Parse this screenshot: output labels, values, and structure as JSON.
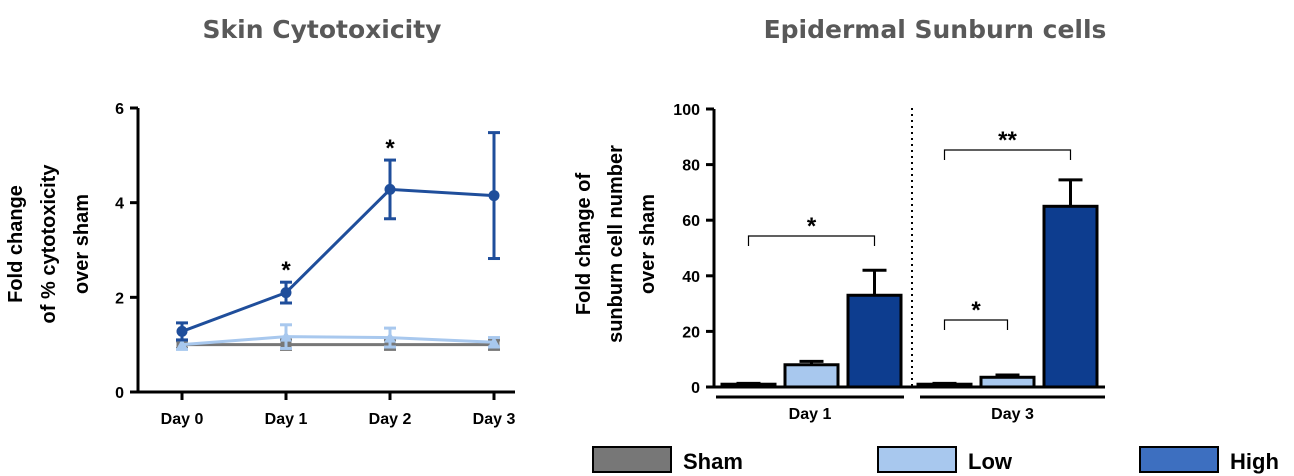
{
  "chart_data": [
    {
      "type": "line",
      "title": "Skin Cytotoxicity",
      "ylabel": "Fold change of % cytotoxicity over sham",
      "ylabel_lines": [
        "Fold change",
        "of % cytotoxicity",
        "over sham"
      ],
      "xlabel": "",
      "categories": [
        "Day 0",
        "Day 1",
        "Day 2",
        "Day 3"
      ],
      "ylim": [
        0,
        6
      ],
      "yticks": [
        0,
        2,
        4,
        6
      ],
      "grid": false,
      "series": [
        {
          "name": "Sham",
          "color": "#777777",
          "values": [
            1.0,
            1.0,
            1.0,
            1.0
          ],
          "errors": [
            0.08,
            0.1,
            0.1,
            0.1
          ],
          "marker": "square"
        },
        {
          "name": "Low",
          "color": "#a8c8ee",
          "values": [
            1.0,
            1.17,
            1.15,
            1.05
          ],
          "errors": [
            0.1,
            0.25,
            0.2,
            0.1
          ],
          "marker": "triangle"
        },
        {
          "name": "High",
          "color": "#1f4e9b",
          "values": [
            1.28,
            2.1,
            4.28,
            4.15
          ],
          "errors": [
            0.18,
            0.22,
            0.62,
            1.33
          ],
          "marker": "circle"
        }
      ],
      "annotations": [
        {
          "category": "Day 1",
          "text": "*"
        },
        {
          "category": "Day 2",
          "text": "*"
        }
      ]
    },
    {
      "type": "bar",
      "title": "Epidermal Sunburn cells",
      "ylabel": "Fold change of sunburn cell number over sham",
      "ylabel_lines": [
        "Fold change of",
        "sunburn cell number",
        "over sham"
      ],
      "xlabel": "",
      "categories": [
        "Day 1",
        "Day 3"
      ],
      "ylim": [
        0,
        100
      ],
      "yticks": [
        0,
        20,
        40,
        60,
        80,
        100
      ],
      "grid": false,
      "series": [
        {
          "name": "Sham",
          "color": "#777777",
          "values": [
            1,
            1
          ],
          "errors": [
            0.3,
            0.3
          ]
        },
        {
          "name": "Low",
          "color": "#a8c8ee",
          "values": [
            8,
            3.5
          ],
          "errors": [
            1.2,
            0.8
          ]
        },
        {
          "name": "High",
          "color": "#0d3d8f",
          "values": [
            33,
            65
          ],
          "errors": [
            9,
            9.5
          ]
        }
      ],
      "annotations": [
        {
          "category": "Day 1",
          "from": "Sham",
          "to": "High",
          "text": "*"
        },
        {
          "category": "Day 3",
          "from": "Sham",
          "to": "Low",
          "text": "*"
        },
        {
          "category": "Day 3",
          "from": "Sham",
          "to": "High",
          "text": "**"
        }
      ]
    }
  ],
  "legend": {
    "placement": "bottom",
    "items": [
      {
        "label": "Sham",
        "color": "#777777"
      },
      {
        "label": "Low",
        "color": "#a8c8ee"
      },
      {
        "label": "High",
        "color": "#3d6fc0"
      }
    ]
  }
}
